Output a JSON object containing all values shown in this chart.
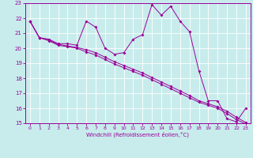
{
  "title": "",
  "xlabel": "Windchill (Refroidissement éolien,°C)",
  "background_color": "#c8ecec",
  "line_color": "#990099",
  "xlim": [
    -0.5,
    23.5
  ],
  "ylim": [
    15,
    23
  ],
  "xticks": [
    0,
    1,
    2,
    3,
    4,
    5,
    6,
    7,
    8,
    9,
    10,
    11,
    12,
    13,
    14,
    15,
    16,
    17,
    18,
    19,
    20,
    21,
    22,
    23
  ],
  "yticks": [
    15,
    16,
    17,
    18,
    19,
    20,
    21,
    22,
    23
  ],
  "x": [
    0,
    1,
    2,
    3,
    4,
    5,
    6,
    7,
    8,
    9,
    10,
    11,
    12,
    13,
    14,
    15,
    16,
    17,
    18,
    19,
    20,
    21,
    22,
    23
  ],
  "line1": [
    21.8,
    20.7,
    20.6,
    20.3,
    20.3,
    20.2,
    21.8,
    21.4,
    20.0,
    19.6,
    19.7,
    20.6,
    20.9,
    22.9,
    22.2,
    22.8,
    21.8,
    21.1,
    18.5,
    16.5,
    16.5,
    15.3,
    15.1,
    16.0
  ],
  "line2": [
    21.8,
    20.7,
    20.55,
    20.25,
    20.15,
    20.05,
    19.9,
    19.7,
    19.4,
    19.1,
    18.85,
    18.6,
    18.35,
    18.05,
    17.75,
    17.45,
    17.15,
    16.85,
    16.5,
    16.3,
    16.1,
    15.8,
    15.4,
    15.05
  ],
  "line3": [
    21.8,
    20.7,
    20.5,
    20.2,
    20.1,
    20.0,
    19.75,
    19.55,
    19.25,
    18.95,
    18.7,
    18.45,
    18.2,
    17.9,
    17.6,
    17.3,
    17.0,
    16.7,
    16.4,
    16.2,
    16.0,
    15.65,
    15.25,
    14.95
  ]
}
